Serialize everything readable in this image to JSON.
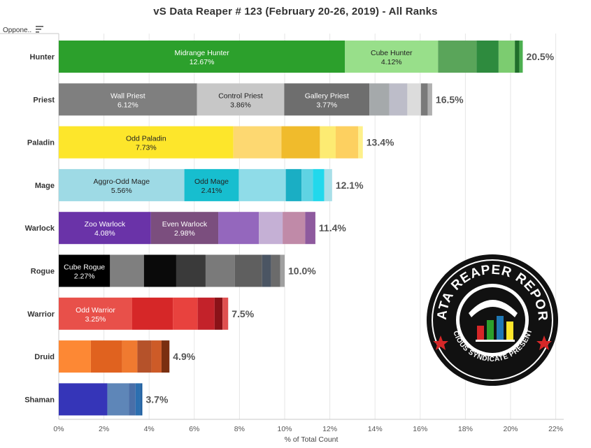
{
  "title": "vS Data Reaper # 123 (February 20-26, 2019) - All Ranks",
  "row_header": "Oppone..",
  "x_axis_title": "% of Total Count",
  "sort_icon": "sort-descending-icon",
  "logo": {
    "text_top": "DATA REAPER REPORT",
    "text_bottom": "VICIOUS SYNDICATE PRESENTS",
    "icon": "reaper-bar-chart-logo"
  },
  "chart_data": {
    "type": "bar",
    "orientation": "horizontal",
    "stacked": true,
    "xlim": [
      0,
      22.5
    ],
    "x_ticks": [
      "0%",
      "2%",
      "4%",
      "6%",
      "8%",
      "10%",
      "12%",
      "14%",
      "16%",
      "18%",
      "20%",
      "22%"
    ],
    "x_tick_values": [
      0,
      2,
      4,
      6,
      8,
      10,
      12,
      14,
      16,
      18,
      20,
      22
    ],
    "grid": "vertical",
    "categories": [
      {
        "name": "Hunter",
        "total_label": "20.5%",
        "segments": [
          {
            "label": "Midrange Hunter",
            "value_label": "12.67%",
            "value": 12.67,
            "color": "#2ca02c",
            "text_color": "#ffffff"
          },
          {
            "label": "Cube Hunter",
            "value_label": "4.12%",
            "value": 4.12,
            "color": "#98df8a",
            "text_color": "#222222"
          },
          {
            "value": 1.7,
            "color": "#5aa55a"
          },
          {
            "value": 0.98,
            "color": "#2e8b3e"
          },
          {
            "value": 0.72,
            "color": "#7ccc70"
          },
          {
            "value": 0.2,
            "color": "#1f6f2a"
          },
          {
            "value": 0.15,
            "color": "#4caf50"
          }
        ]
      },
      {
        "name": "Priest",
        "total_label": "16.5%",
        "segments": [
          {
            "label": "Wall Priest",
            "value_label": "6.12%",
            "value": 6.12,
            "color": "#7f7f7f",
            "text_color": "#ffffff"
          },
          {
            "label": "Control Priest",
            "value_label": "3.86%",
            "value": 3.86,
            "color": "#c7c7c7",
            "text_color": "#222222"
          },
          {
            "label": "Gallery Priest",
            "value_label": "3.77%",
            "value": 3.77,
            "color": "#6e6e6e",
            "text_color": "#ffffff"
          },
          {
            "value": 0.88,
            "color": "#a5a9ab"
          },
          {
            "value": 0.8,
            "color": "#bdbdc9"
          },
          {
            "value": 0.6,
            "color": "#dcdcdc"
          },
          {
            "value": 0.3,
            "color": "#7a7a7a"
          },
          {
            "value": 0.2,
            "color": "#b0b0b0"
          }
        ]
      },
      {
        "name": "Paladin",
        "total_label": "13.4%",
        "segments": [
          {
            "label": "Odd Paladin",
            "value_label": "7.73%",
            "value": 7.73,
            "color": "#fde62b",
            "text_color": "#222222"
          },
          {
            "value": 2.13,
            "color": "#fdd871"
          },
          {
            "value": 1.7,
            "color": "#f0bb2c"
          },
          {
            "value": 0.7,
            "color": "#fdeb72"
          },
          {
            "value": 1.0,
            "color": "#fdd060"
          },
          {
            "value": 0.2,
            "color": "#fef08a"
          }
        ]
      },
      {
        "name": "Mage",
        "total_label": "12.1%",
        "segments": [
          {
            "label": "Aggro-Odd Mage",
            "value_label": "5.56%",
            "value": 5.56,
            "color": "#9edae5",
            "text_color": "#222222"
          },
          {
            "label": "Odd Mage",
            "value_label": "2.41%",
            "value": 2.41,
            "color": "#17becf",
            "text_color": "#222222"
          },
          {
            "value": 2.08,
            "color": "#8fdce8"
          },
          {
            "value": 0.7,
            "color": "#1aaec4"
          },
          {
            "value": 0.5,
            "color": "#5fd3e3"
          },
          {
            "value": 0.5,
            "color": "#22d8ec"
          },
          {
            "value": 0.35,
            "color": "#a8dfe8"
          }
        ]
      },
      {
        "name": "Warlock",
        "total_label": "11.4%",
        "segments": [
          {
            "label": "Zoo Warlock",
            "value_label": "4.08%",
            "value": 4.08,
            "color": "#6a33a8",
            "text_color": "#ffffff"
          },
          {
            "label": "Even Warlock",
            "value_label": "2.98%",
            "value": 2.98,
            "color": "#7b4e7e",
            "text_color": "#ffffff"
          },
          {
            "value": 1.8,
            "color": "#9467bd"
          },
          {
            "value": 1.05,
            "color": "#c5b0d5"
          },
          {
            "value": 1.0,
            "color": "#c08aa8"
          },
          {
            "value": 0.45,
            "color": "#8e5a9e"
          }
        ]
      },
      {
        "name": "Rogue",
        "total_label": "10.0%",
        "segments": [
          {
            "label": "Cube Rogue",
            "value_label": "2.27%",
            "value": 2.27,
            "color": "#000000",
            "text_color": "#ffffff"
          },
          {
            "value": 1.5,
            "color": "#7f7f7f"
          },
          {
            "value": 1.43,
            "color": "#0a0a0a"
          },
          {
            "value": 1.3,
            "color": "#3a3a3a"
          },
          {
            "value": 1.3,
            "color": "#7a7a7a"
          },
          {
            "value": 1.2,
            "color": "#5f5f5f"
          },
          {
            "value": 0.4,
            "color": "#4b5563"
          },
          {
            "value": 0.4,
            "color": "#6b6b6b"
          },
          {
            "value": 0.2,
            "color": "#a0a0a0"
          }
        ]
      },
      {
        "name": "Warrior",
        "total_label": "7.5%",
        "segments": [
          {
            "label": "Odd Warrior",
            "value_label": "3.25%",
            "value": 3.25,
            "color": "#e8504a",
            "text_color": "#ffffff"
          },
          {
            "value": 1.8,
            "color": "#d62728"
          },
          {
            "value": 1.1,
            "color": "#e8423e"
          },
          {
            "value": 0.75,
            "color": "#c3222a"
          },
          {
            "value": 0.35,
            "color": "#8b1218"
          },
          {
            "value": 0.25,
            "color": "#e05050"
          }
        ]
      },
      {
        "name": "Druid",
        "total_label": "4.9%",
        "segments": [
          {
            "value": 1.42,
            "color": "#fd8834"
          },
          {
            "value": 1.38,
            "color": "#e0621f"
          },
          {
            "value": 0.68,
            "color": "#f07a30"
          },
          {
            "value": 0.62,
            "color": "#b5522a"
          },
          {
            "value": 0.45,
            "color": "#cd5b28"
          },
          {
            "value": 0.35,
            "color": "#7a2f10"
          }
        ]
      },
      {
        "name": "Shaman",
        "total_label": "3.7%",
        "segments": [
          {
            "value": 2.15,
            "color": "#3535b8"
          },
          {
            "value": 0.95,
            "color": "#5e86b8"
          },
          {
            "value": 0.3,
            "color": "#4a6fa8"
          },
          {
            "value": 0.2,
            "color": "#2c6fb0"
          },
          {
            "value": 0.1,
            "color": "#1f5fa0"
          }
        ]
      }
    ]
  }
}
